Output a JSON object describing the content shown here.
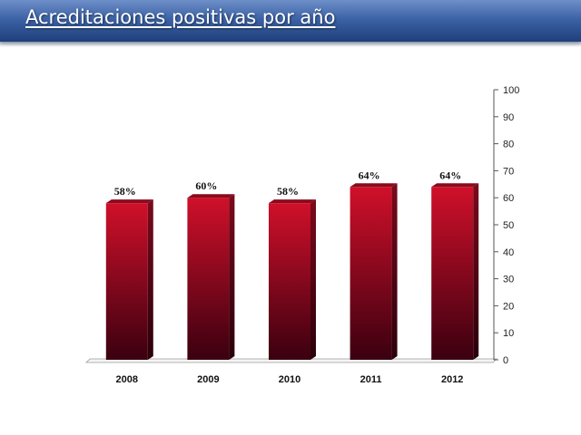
{
  "slide": {
    "title": "Acreditaciones positivas por año"
  },
  "colors": {
    "bar_top": "#d0102a",
    "bar_bottom": "#3a0010",
    "bar_side": "#5a0014",
    "bar_cap": "#8c0a1c",
    "title_bar": "#3c63a6"
  },
  "chart_data": {
    "type": "bar",
    "title": "",
    "xlabel": "",
    "ylabel": "",
    "categories": [
      "2008",
      "2009",
      "2010",
      "2011",
      "2012"
    ],
    "values": [
      58,
      60,
      58,
      64,
      64
    ],
    "data_labels": [
      "58%",
      "60%",
      "58%",
      "64%",
      "64%"
    ],
    "ylim": [
      0,
      100
    ],
    "yticks": [
      0,
      10,
      20,
      30,
      40,
      50,
      60,
      70,
      80,
      90,
      100
    ],
    "y_axis_side": "right",
    "grid": false,
    "legend": "none"
  }
}
